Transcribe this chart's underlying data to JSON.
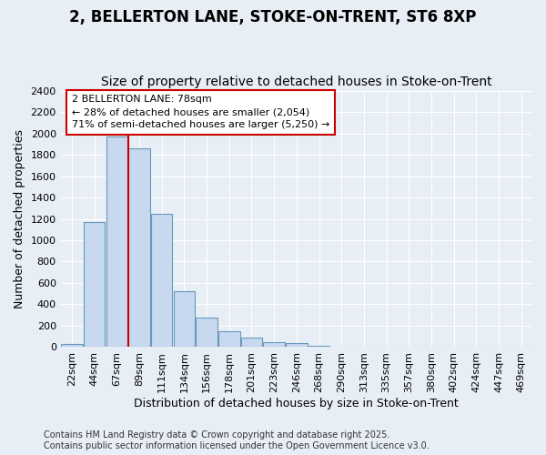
{
  "title_line1": "2, BELLERTON LANE, STOKE-ON-TRENT, ST6 8XP",
  "title_line2": "Size of property relative to detached houses in Stoke-on-Trent",
  "xlabel": "Distribution of detached houses by size in Stoke-on-Trent",
  "ylabel": "Number of detached properties",
  "categories": [
    "22sqm",
    "44sqm",
    "67sqm",
    "89sqm",
    "111sqm",
    "134sqm",
    "156sqm",
    "178sqm",
    "201sqm",
    "223sqm",
    "246sqm",
    "268sqm",
    "290sqm",
    "313sqm",
    "335sqm",
    "357sqm",
    "380sqm",
    "402sqm",
    "424sqm",
    "447sqm",
    "469sqm"
  ],
  "values": [
    30,
    1170,
    1970,
    1860,
    1250,
    520,
    275,
    150,
    85,
    45,
    35,
    10,
    5,
    3,
    2,
    2,
    1,
    1,
    1,
    1,
    1
  ],
  "bar_color": "#c8d8ee",
  "bar_edge_color": "#6699bb",
  "annotation_text_line1": "2 BELLERTON LANE: 78sqm",
  "annotation_text_line2": "← 28% of detached houses are smaller (2,054)",
  "annotation_text_line3": "71% of semi-detached houses are larger (5,250) →",
  "annotation_box_color": "#ffffff",
  "annotation_box_edge": "#cc0000",
  "vline_color": "#cc0000",
  "vline_x_index": 2,
  "footer_line1": "Contains HM Land Registry data © Crown copyright and database right 2025.",
  "footer_line2": "Contains public sector information licensed under the Open Government Licence v3.0.",
  "ylim": [
    0,
    2400
  ],
  "background_color": "#e8eef5",
  "grid_color": "#ffffff",
  "title_fontsize": 12,
  "subtitle_fontsize": 10,
  "axis_label_fontsize": 9,
  "tick_fontsize": 8,
  "footer_fontsize": 7
}
